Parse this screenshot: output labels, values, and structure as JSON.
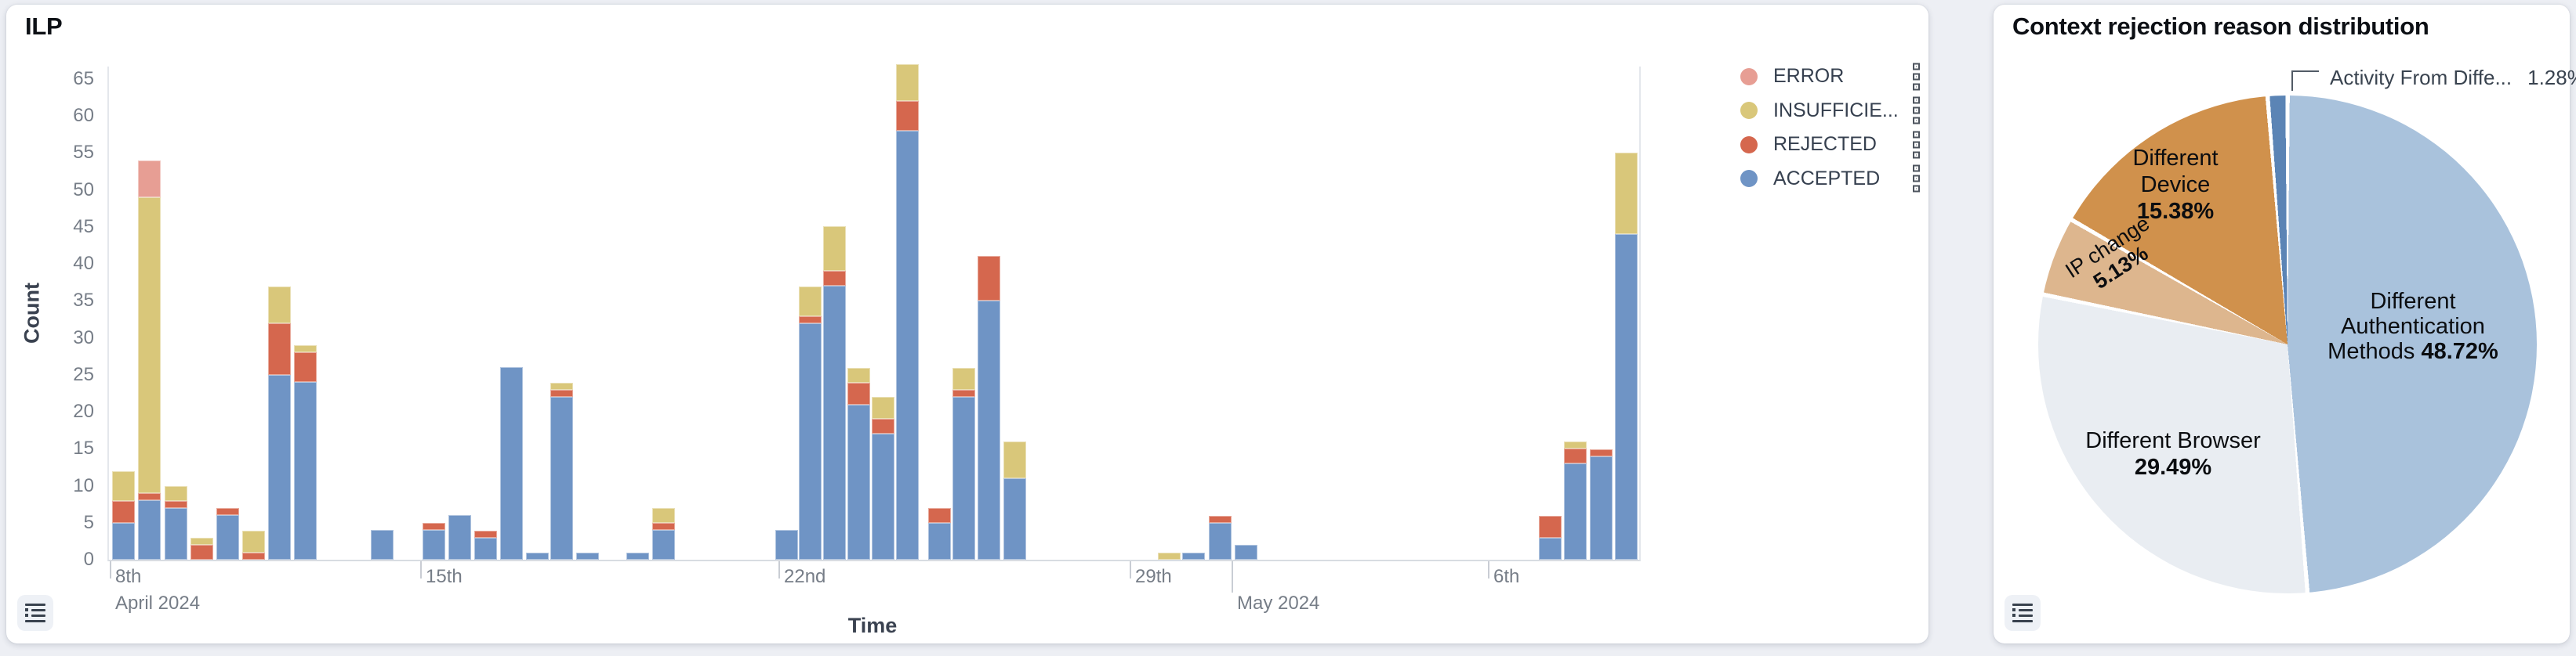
{
  "left_panel": {
    "title": "ILP",
    "y_axis_label": "Count",
    "x_axis_label": "Time",
    "legend": {
      "items": [
        {
          "label": "ERROR",
          "color": "#e79e94"
        },
        {
          "label": "INSUFFICIE...",
          "color": "#d9c77a"
        },
        {
          "label": "REJECTED",
          "color": "#d5674e"
        },
        {
          "label": "ACCEPTED",
          "color": "#6f94c5"
        }
      ]
    }
  },
  "right_panel": {
    "title": "Context rejection reason distribution",
    "labels": {
      "device": {
        "line1": "Different",
        "line2": "Device",
        "pct": "15.38%"
      },
      "auth": {
        "line1": "Different",
        "line2": "Authentication",
        "line3": "Methods",
        "pct": "48.72%"
      },
      "browser": {
        "line1": "Different Browser",
        "pct": "29.49%"
      },
      "ip": {
        "line1": "IP change",
        "pct": "5.13%"
      },
      "callout": {
        "label": "Activity From Diffe...",
        "pct": "1.28%"
      }
    }
  },
  "chart_data": [
    {
      "type": "bar",
      "title": "ILP",
      "stacked": true,
      "xlabel": "Time",
      "ylabel": "Count",
      "ylim": [
        0,
        67
      ],
      "y_ticks": [
        0,
        5,
        10,
        15,
        20,
        25,
        30,
        35,
        40,
        45,
        50,
        55,
        60,
        65
      ],
      "series_order_bottom_to_top": [
        "ACCEPTED",
        "REJECTED",
        "INSUFFICIENT",
        "ERROR"
      ],
      "series_colors": {
        "ACCEPTED": "#6f94c5",
        "REJECTED": "#d5674e",
        "INSUFFICIENT": "#d9c77a",
        "ERROR": "#e79e94"
      },
      "x_ticks": [
        {
          "px": 3,
          "label": "8th",
          "sublabel": "April 2024"
        },
        {
          "px": 399,
          "label": "15th",
          "sublabel": ""
        },
        {
          "px": 856,
          "label": "22nd",
          "sublabel": ""
        },
        {
          "px": 1304,
          "label": "29th",
          "sublabel": ""
        },
        {
          "px": 1434,
          "label": "",
          "sublabel": "May 2024"
        },
        {
          "px": 1761,
          "label": "6th",
          "sublabel": ""
        }
      ],
      "bars": [
        {
          "px": 4,
          "accepted": 5,
          "rejected": 3,
          "insufficient": 4,
          "error": 0
        },
        {
          "px": 37,
          "accepted": 8,
          "rejected": 1,
          "insufficient": 40,
          "error": 5
        },
        {
          "px": 71,
          "accepted": 7,
          "rejected": 1,
          "insufficient": 2,
          "error": 0
        },
        {
          "px": 104,
          "accepted": 0,
          "rejected": 2,
          "insufficient": 1,
          "error": 0
        },
        {
          "px": 137,
          "accepted": 6,
          "rejected": 1,
          "insufficient": 0,
          "error": 0
        },
        {
          "px": 170,
          "accepted": 0,
          "rejected": 1,
          "insufficient": 3,
          "error": 0
        },
        {
          "px": 203,
          "accepted": 25,
          "rejected": 7,
          "insufficient": 5,
          "error": 0
        },
        {
          "px": 236,
          "accepted": 24,
          "rejected": 4,
          "insufficient": 1,
          "error": 0
        },
        {
          "px": 334,
          "accepted": 4,
          "rejected": 0,
          "insufficient": 0,
          "error": 0
        },
        {
          "px": 400,
          "accepted": 4,
          "rejected": 1,
          "insufficient": 0,
          "error": 0
        },
        {
          "px": 433,
          "accepted": 6,
          "rejected": 0,
          "insufficient": 0,
          "error": 0
        },
        {
          "px": 466,
          "accepted": 3,
          "rejected": 1,
          "insufficient": 0,
          "error": 0
        },
        {
          "px": 499,
          "accepted": 26,
          "rejected": 0,
          "insufficient": 0,
          "error": 0
        },
        {
          "px": 532,
          "accepted": 1,
          "rejected": 0,
          "insufficient": 0,
          "error": 0
        },
        {
          "px": 563,
          "accepted": 22,
          "rejected": 1,
          "insufficient": 1,
          "error": 0
        },
        {
          "px": 596,
          "accepted": 1,
          "rejected": 0,
          "insufficient": 0,
          "error": 0
        },
        {
          "px": 660,
          "accepted": 1,
          "rejected": 0,
          "insufficient": 0,
          "error": 0
        },
        {
          "px": 693,
          "accepted": 4,
          "rejected": 1,
          "insufficient": 2,
          "error": 0
        },
        {
          "px": 850,
          "accepted": 4,
          "rejected": 0,
          "insufficient": 0,
          "error": 0
        },
        {
          "px": 880,
          "accepted": 32,
          "rejected": 1,
          "insufficient": 4,
          "error": 0
        },
        {
          "px": 911,
          "accepted": 37,
          "rejected": 2,
          "insufficient": 6,
          "error": 0
        },
        {
          "px": 942,
          "accepted": 21,
          "rejected": 3,
          "insufficient": 2,
          "error": 0
        },
        {
          "px": 973,
          "accepted": 17,
          "rejected": 2,
          "insufficient": 3,
          "error": 0
        },
        {
          "px": 1004,
          "accepted": 58,
          "rejected": 4,
          "insufficient": 5,
          "error": 0
        },
        {
          "px": 1045,
          "accepted": 5,
          "rejected": 2,
          "insufficient": 0,
          "error": 0
        },
        {
          "px": 1076,
          "accepted": 22,
          "rejected": 1,
          "insufficient": 3,
          "error": 0
        },
        {
          "px": 1108,
          "accepted": 35,
          "rejected": 6,
          "insufficient": 0,
          "error": 0
        },
        {
          "px": 1141,
          "accepted": 11,
          "rejected": 0,
          "insufficient": 5,
          "error": 0
        },
        {
          "px": 1338,
          "accepted": 0,
          "rejected": 0,
          "insufficient": 1,
          "error": 0
        },
        {
          "px": 1369,
          "accepted": 1,
          "rejected": 0,
          "insufficient": 0,
          "error": 0
        },
        {
          "px": 1403,
          "accepted": 5,
          "rejected": 1,
          "insufficient": 0,
          "error": 0
        },
        {
          "px": 1436,
          "accepted": 2,
          "rejected": 0,
          "insufficient": 0,
          "error": 0
        },
        {
          "px": 1824,
          "accepted": 3,
          "rejected": 3,
          "insufficient": 0,
          "error": 0
        },
        {
          "px": 1856,
          "accepted": 13,
          "rejected": 2,
          "insufficient": 1,
          "error": 0
        },
        {
          "px": 1889,
          "accepted": 14,
          "rejected": 1,
          "insufficient": 0,
          "error": 0
        },
        {
          "px": 1921,
          "accepted": 44,
          "rejected": 0,
          "insufficient": 11,
          "error": 0
        }
      ]
    },
    {
      "type": "pie",
      "title": "Context rejection reason distribution",
      "start_angle_deg": -4.6,
      "slices": [
        {
          "label": "Activity From Diffe...",
          "pct": 1.28,
          "color": "#5b84b5"
        },
        {
          "label": "Different Authentication Methods",
          "pct": 48.72,
          "color": "#a9c2dc"
        },
        {
          "label": "Different Browser",
          "pct": 29.49,
          "color": "#e9edf2"
        },
        {
          "label": "IP change",
          "pct": 5.13,
          "color": "#ddb68e"
        },
        {
          "label": "Different Device",
          "pct": 15.38,
          "color": "#d0914c"
        }
      ]
    }
  ]
}
